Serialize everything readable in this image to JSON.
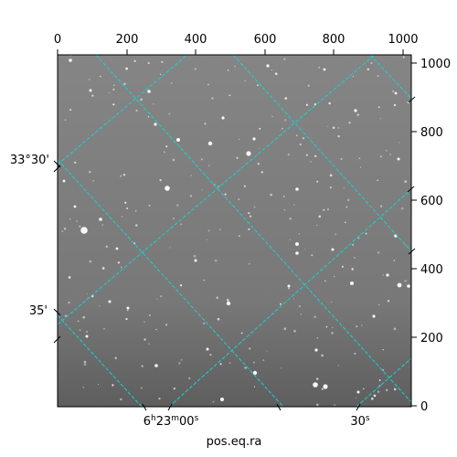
{
  "figure": {
    "xlabel": "pos.eq.ra",
    "top_ticks": [
      "0",
      "200",
      "400",
      "600",
      "800",
      "1000"
    ],
    "right_ticks": [
      "0",
      "200",
      "400",
      "600",
      "800",
      "1000"
    ],
    "left_ticks": [
      "33°30'",
      "35'"
    ],
    "bottom_ticks": {
      "ra1": {
        "h": "6",
        "h_unit": "h",
        "m": "23",
        "m_unit": "m",
        "s": "00",
        "s_unit": "s"
      },
      "ra2": {
        "s": "30",
        "s_unit": "s"
      }
    },
    "grid_color": "#17d3d3",
    "background_color": "#7a7a7a"
  }
}
